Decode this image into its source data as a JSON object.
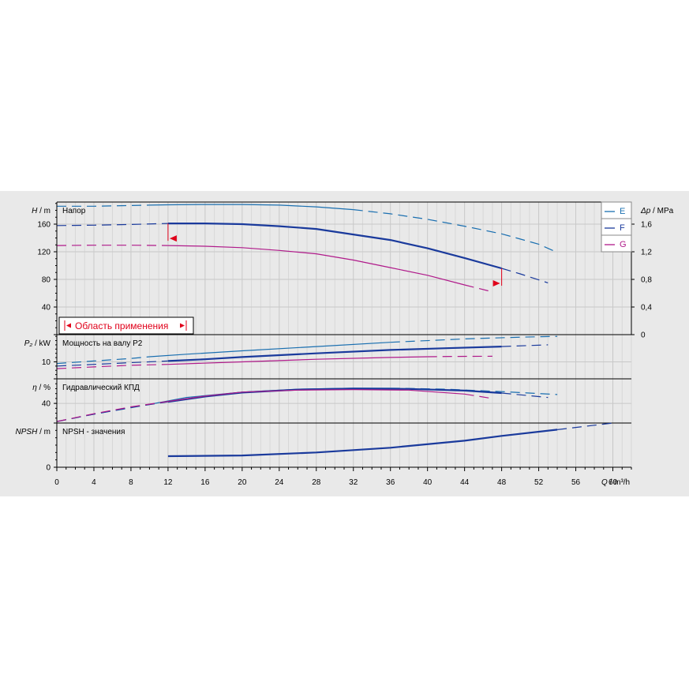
{
  "chart_data": {
    "type": "line",
    "x_axis": {
      "label_var": "Q",
      "label_unit": "/ m³/h",
      "range": [
        0,
        62
      ],
      "ticks": [
        0,
        4,
        8,
        12,
        16,
        20,
        24,
        28,
        32,
        36,
        40,
        44,
        48,
        52,
        56,
        60
      ],
      "minor_step": 1,
      "grid": true
    },
    "legend": {
      "placement": "top-right",
      "entries": [
        {
          "name": "E",
          "color": "#1a6fb0"
        },
        {
          "name": "F",
          "color": "#1a3a9c"
        },
        {
          "name": "G",
          "color": "#b01a8a"
        }
      ]
    },
    "panels": [
      {
        "id": "head",
        "title": "Напор",
        "ylabel_var": "H",
        "ylabel_unit": "/ m",
        "ylim": [
          0,
          192
        ],
        "yticks": [
          0,
          40,
          80,
          120,
          160
        ],
        "ytick_labels": [
          "",
          "40",
          "80",
          "120",
          "160"
        ],
        "right_axis": {
          "label_var": "Δp",
          "label_unit": "/ MPa",
          "ticks": [
            {
              "value": 0,
              "label": "0"
            },
            {
              "value": 40,
              "label": "0,4"
            },
            {
              "value": 80,
              "label": "0,8"
            },
            {
              "value": 120,
              "label": "1,2"
            },
            {
              "value": 160,
              "label": "1,6"
            }
          ]
        },
        "annotation": "Область применения",
        "series": [
          {
            "name": "E",
            "color": "#1a6fb0",
            "width": 1.2,
            "dashed": [
              [
                0,
                186
              ],
              [
                4,
                186
              ],
              [
                8,
                187
              ],
              [
                10,
                187.5
              ]
            ],
            "solid": [
              [
                10,
                187.5
              ],
              [
                12,
                188
              ],
              [
                16,
                188.5
              ],
              [
                20,
                188.5
              ],
              [
                24,
                187.5
              ],
              [
                28,
                185
              ],
              [
                32,
                181
              ]
            ],
            "dashed_end": [
              [
                32,
                181
              ],
              [
                36,
                175
              ],
              [
                40,
                167
              ],
              [
                44,
                157
              ],
              [
                48,
                146
              ],
              [
                52,
                131
              ],
              [
                54,
                119
              ]
            ]
          },
          {
            "name": "F",
            "color": "#1a3a9c",
            "width": 2.2,
            "dashed": [
              [
                0,
                158
              ],
              [
                4,
                158.5
              ],
              [
                8,
                159.5
              ],
              [
                12,
                161
              ]
            ],
            "solid": [
              [
                12,
                161
              ],
              [
                16,
                161
              ],
              [
                20,
                160
              ],
              [
                24,
                157
              ],
              [
                28,
                153
              ],
              [
                32,
                145
              ],
              [
                36,
                137
              ],
              [
                40,
                125
              ],
              [
                44,
                111
              ],
              [
                48,
                96
              ]
            ],
            "dashed_end": [
              [
                48,
                96
              ],
              [
                50,
                88
              ],
              [
                53,
                75
              ]
            ],
            "range_marks": [
              12,
              48
            ]
          },
          {
            "name": "G",
            "color": "#b01a8a",
            "width": 1.2,
            "dashed": [
              [
                0,
                129
              ],
              [
                4,
                129.5
              ],
              [
                8,
                129.5
              ],
              [
                12,
                129
              ]
            ],
            "solid": [
              [
                12,
                129
              ],
              [
                16,
                128
              ],
              [
                20,
                126
              ],
              [
                24,
                122
              ],
              [
                28,
                117
              ],
              [
                32,
                108
              ],
              [
                36,
                97
              ],
              [
                40,
                86
              ],
              [
                44,
                72
              ]
            ],
            "dashed_end": [
              [
                44,
                72
              ],
              [
                47,
                62
              ]
            ]
          }
        ]
      },
      {
        "id": "power",
        "title": "Мощность на валу P2",
        "ylabel_var": "P₂",
        "ylabel_unit": "/ kW",
        "ylim": [
          0,
          26
        ],
        "yticks": [
          0,
          10
        ],
        "ytick_labels": [
          "",
          "10"
        ],
        "series": [
          {
            "name": "E",
            "color": "#1a6fb0",
            "width": 1.2,
            "dashed": [
              [
                0,
                9
              ],
              [
                4,
                10.5
              ],
              [
                8,
                12
              ],
              [
                10,
                13
              ]
            ],
            "solid": [
              [
                10,
                13
              ],
              [
                14,
                14.5
              ],
              [
                20,
                16.5
              ],
              [
                28,
                19
              ],
              [
                36,
                21.5
              ]
            ],
            "dashed_end": [
              [
                36,
                21.5
              ],
              [
                44,
                23.5
              ],
              [
                50,
                24.5
              ],
              [
                54,
                25
              ]
            ]
          },
          {
            "name": "F",
            "color": "#1a3a9c",
            "width": 2.2,
            "dashed": [
              [
                0,
                7.5
              ],
              [
                4,
                8.5
              ],
              [
                8,
                9.5
              ],
              [
                12,
                10.5
              ]
            ],
            "solid": [
              [
                12,
                10.5
              ],
              [
                16,
                11.5
              ],
              [
                20,
                12.8
              ],
              [
                28,
                15
              ],
              [
                36,
                17
              ],
              [
                42,
                18
              ],
              [
                48,
                19
              ]
            ],
            "dashed_end": [
              [
                48,
                19
              ],
              [
                53,
                20
              ]
            ]
          },
          {
            "name": "G",
            "color": "#b01a8a",
            "width": 1.2,
            "dashed": [
              [
                0,
                6
              ],
              [
                4,
                7
              ],
              [
                8,
                8
              ],
              [
                12,
                8.5
              ]
            ],
            "solid": [
              [
                12,
                8.5
              ],
              [
                20,
                10
              ],
              [
                28,
                11.5
              ],
              [
                36,
                12.6
              ],
              [
                40,
                13
              ]
            ],
            "dashed_end": [
              [
                40,
                13
              ],
              [
                43,
                13.2
              ],
              [
                47,
                13.3
              ]
            ]
          }
        ]
      },
      {
        "id": "efficiency",
        "title": "Гидравлический КПД",
        "ylabel_var": "η",
        "ylabel_unit": "/ %",
        "ylim": [
          0,
          90
        ],
        "yticks": [
          0,
          40
        ],
        "ytick_labels": [
          "",
          "40"
        ],
        "series": [
          {
            "name": "E",
            "color": "#1a6fb0",
            "width": 1.2,
            "dashed": [
              [
                0,
                3
              ],
              [
                4,
                18
              ],
              [
                8,
                31
              ],
              [
                10,
                38
              ]
            ],
            "solid": [
              [
                10,
                38
              ],
              [
                14,
                52
              ],
              [
                20,
                63
              ],
              [
                26,
                69
              ],
              [
                32,
                71
              ],
              [
                36,
                71
              ]
            ],
            "dashed_end": [
              [
                36,
                71
              ],
              [
                42,
                69
              ],
              [
                48,
                64
              ],
              [
                54,
                58
              ]
            ]
          },
          {
            "name": "F",
            "color": "#1a3a9c",
            "width": 2.2,
            "dashed": [
              [
                0,
                3
              ],
              [
                4,
                18
              ],
              [
                8,
                32
              ],
              [
                12,
                43
              ]
            ],
            "solid": [
              [
                12,
                43
              ],
              [
                16,
                54
              ],
              [
                20,
                62
              ],
              [
                26,
                68
              ],
              [
                32,
                70
              ],
              [
                38,
                69.5
              ],
              [
                44,
                66
              ],
              [
                48,
                61
              ]
            ],
            "dashed_end": [
              [
                48,
                61
              ],
              [
                53,
                52
              ]
            ]
          },
          {
            "name": "G",
            "color": "#b01a8a",
            "width": 1.2,
            "dashed": [
              [
                0,
                3
              ],
              [
                4,
                19
              ],
              [
                8,
                33
              ],
              [
                12,
                44
              ]
            ],
            "solid": [
              [
                12,
                44
              ],
              [
                16,
                55
              ],
              [
                20,
                63
              ],
              [
                26,
                67
              ],
              [
                32,
                68
              ],
              [
                38,
                67
              ],
              [
                44,
                59
              ]
            ],
            "dashed_end": [
              [
                44,
                59
              ],
              [
                47,
                50
              ]
            ]
          }
        ]
      },
      {
        "id": "npsh",
        "title": "NPSH - значения",
        "ylabel_var": "NPSH",
        "ylabel_unit": "/ m",
        "ylim": [
          0,
          12
        ],
        "yticks": [
          0
        ],
        "ytick_labels": [
          "0"
        ],
        "series": [
          {
            "name": "F",
            "color": "#1a3a9c",
            "width": 2.2,
            "solid": [
              [
                12,
                3
              ],
              [
                20,
                3.2
              ],
              [
                28,
                4
              ],
              [
                36,
                5.3
              ],
              [
                44,
                7.2
              ],
              [
                48,
                8.5
              ],
              [
                54,
                10.2
              ]
            ],
            "dashed_end": [
              [
                54,
                10.2
              ],
              [
                58,
                11.4
              ],
              [
                60,
                12
              ]
            ]
          }
        ]
      }
    ]
  }
}
